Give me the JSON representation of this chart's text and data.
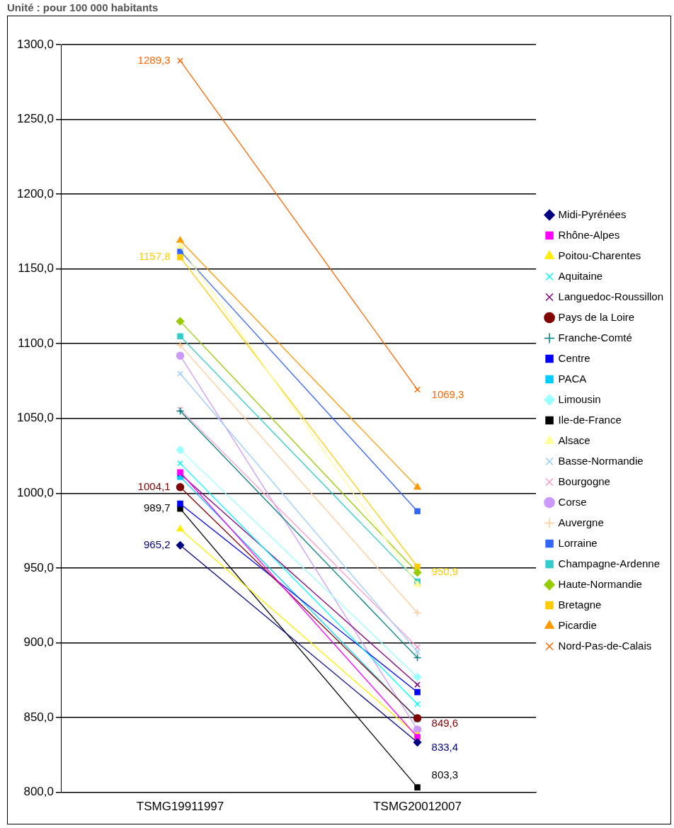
{
  "chart_data": {
    "type": "line",
    "title": "Unité : pour 100 000 habitants",
    "categories": [
      "TSMG19911997",
      "TSMG20012007"
    ],
    "ylim": [
      800,
      1300
    ],
    "yticks": [
      {
        "value": 800,
        "label": "800,0"
      },
      {
        "value": 850,
        "label": "850,0"
      },
      {
        "value": 900,
        "label": "900,0"
      },
      {
        "value": 950,
        "label": "950,0"
      },
      {
        "value": 1000,
        "label": "1000,0"
      },
      {
        "value": 1050,
        "label": "1050,0"
      },
      {
        "value": 1100,
        "label": "1100,0"
      },
      {
        "value": 1150,
        "label": "1150,0"
      },
      {
        "value": 1200,
        "label": "1200,0"
      },
      {
        "value": 1250,
        "label": "1250,0"
      },
      {
        "value": 1300,
        "label": "1300,0"
      }
    ],
    "grid": "y",
    "legend": "right",
    "line_style": "solid",
    "series": [
      {
        "name": "Midi-Pyrénées",
        "color": "#000080",
        "marker": "diamond",
        "values": [
          965.2,
          833.4
        ],
        "value_labels": [
          "965,2",
          "833,4"
        ]
      },
      {
        "name": "Rhône-Alpes",
        "color": "#ff00ff",
        "marker": "square",
        "values": [
          1014,
          837
        ]
      },
      {
        "name": "Poitou-Charentes",
        "color": "#ffee00",
        "marker": "triangle",
        "values": [
          976,
          838
        ]
      },
      {
        "name": "Aquitaine",
        "color": "#00ffff",
        "marker": "cross",
        "values": [
          1020,
          859
        ]
      },
      {
        "name": "Languedoc-Roussillon",
        "color": "#800080",
        "marker": "cross",
        "values": [
          1013,
          872
        ]
      },
      {
        "name": "Pays de la Loire",
        "color": "#800000",
        "marker": "circle",
        "values": [
          1004.1,
          849.6
        ],
        "value_labels": [
          "1004,1",
          "849,6"
        ]
      },
      {
        "name": "Franche-Comté",
        "color": "#008080",
        "marker": "plus",
        "values": [
          1055,
          890
        ]
      },
      {
        "name": "Centre",
        "color": "#0000ff",
        "marker": "square",
        "values": [
          993,
          867
        ]
      },
      {
        "name": "PACA",
        "color": "#00ccff",
        "marker": "square",
        "values": [
          1011,
          849
        ]
      },
      {
        "name": "Limousin",
        "color": "#99ffff",
        "marker": "diamond",
        "values": [
          1029,
          877
        ]
      },
      {
        "name": "Ile-de-France",
        "color": "#000000",
        "marker": "square",
        "values": [
          989.7,
          803.3
        ],
        "value_labels": [
          "989,7",
          "803,3"
        ]
      },
      {
        "name": "Alsace",
        "color": "#ffff99",
        "marker": "triangle",
        "values": [
          1165,
          939
        ]
      },
      {
        "name": "Basse-Normandie",
        "color": "#99ccff",
        "marker": "cross",
        "values": [
          1080,
          894
        ]
      },
      {
        "name": "Bourgogne",
        "color": "#ff99cc",
        "marker": "cross",
        "values": [
          1056,
          897
        ]
      },
      {
        "name": "Corse",
        "color": "#cc99ff",
        "marker": "circle",
        "values": [
          1092,
          842
        ]
      },
      {
        "name": "Auvergne",
        "color": "#ffcc99",
        "marker": "plus",
        "values": [
          1099,
          920
        ]
      },
      {
        "name": "Lorraine",
        "color": "#3366ff",
        "marker": "square",
        "values": [
          1162,
          988
        ]
      },
      {
        "name": "Champagne-Ardenne",
        "color": "#33cccc",
        "marker": "square",
        "values": [
          1105,
          941
        ]
      },
      {
        "name": "Haute-Normandie",
        "color": "#99cc00",
        "marker": "diamond",
        "values": [
          1115,
          947
        ]
      },
      {
        "name": "Bretagne",
        "color": "#ffcc00",
        "marker": "square",
        "values": [
          1157.8,
          950.9
        ],
        "value_labels": [
          "1157,8",
          "950,9"
        ]
      },
      {
        "name": "Picardie",
        "color": "#ff9900",
        "marker": "triangle",
        "values": [
          1169,
          1004
        ]
      },
      {
        "name": "Nord-Pas-de-Calais",
        "color": "#ff6600",
        "marker": "cross",
        "values": [
          1289.3,
          1069.3
        ],
        "value_labels": [
          "1289,3",
          "1069,3"
        ]
      }
    ]
  }
}
